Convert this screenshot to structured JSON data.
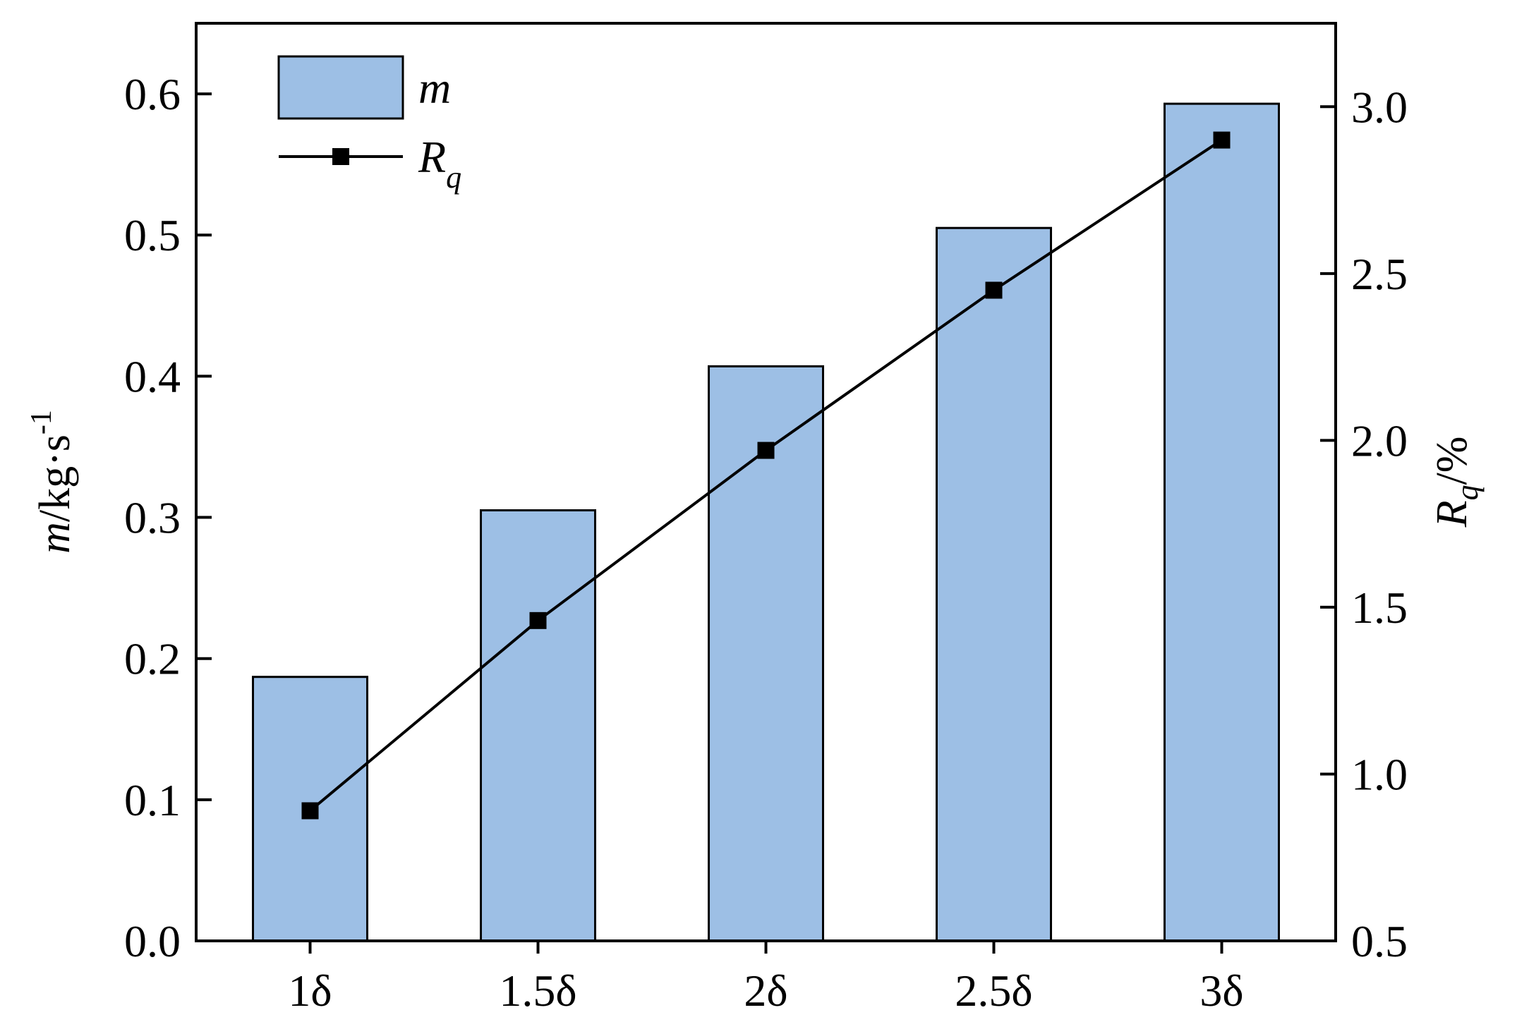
{
  "chart_data": {
    "type": "bar",
    "categories": [
      "1δ",
      "1.5δ",
      "2δ",
      "2.5δ",
      "3δ"
    ],
    "series": [
      {
        "name": "m",
        "type": "bar",
        "axis": "left",
        "values": [
          0.187,
          0.305,
          0.407,
          0.505,
          0.593
        ],
        "color": "#9dbfe5",
        "edgecolor": "#000000"
      },
      {
        "name": "R",
        "name_subscript": "q",
        "type": "line",
        "marker": "square",
        "axis": "right",
        "values": [
          0.89,
          1.46,
          1.97,
          2.45,
          2.9
        ],
        "color": "#000000"
      }
    ],
    "y_left": {
      "label_var": "m",
      "label_unit": "/kg·s",
      "label_sup": "-1",
      "ylim": [
        0.0,
        0.65
      ],
      "ticks": [
        "0.0",
        "0.1",
        "0.2",
        "0.3",
        "0.4",
        "0.5",
        "0.6"
      ]
    },
    "y_right": {
      "label_var": "R",
      "label_sub": "q",
      "label_unit": "/%",
      "ylim": [
        0.5,
        3.25
      ],
      "ticks": [
        "0.5",
        "1.0",
        "1.5",
        "2.0",
        "2.5",
        "3.0"
      ]
    },
    "legend": {
      "placement": "top-left"
    },
    "grid": false
  }
}
